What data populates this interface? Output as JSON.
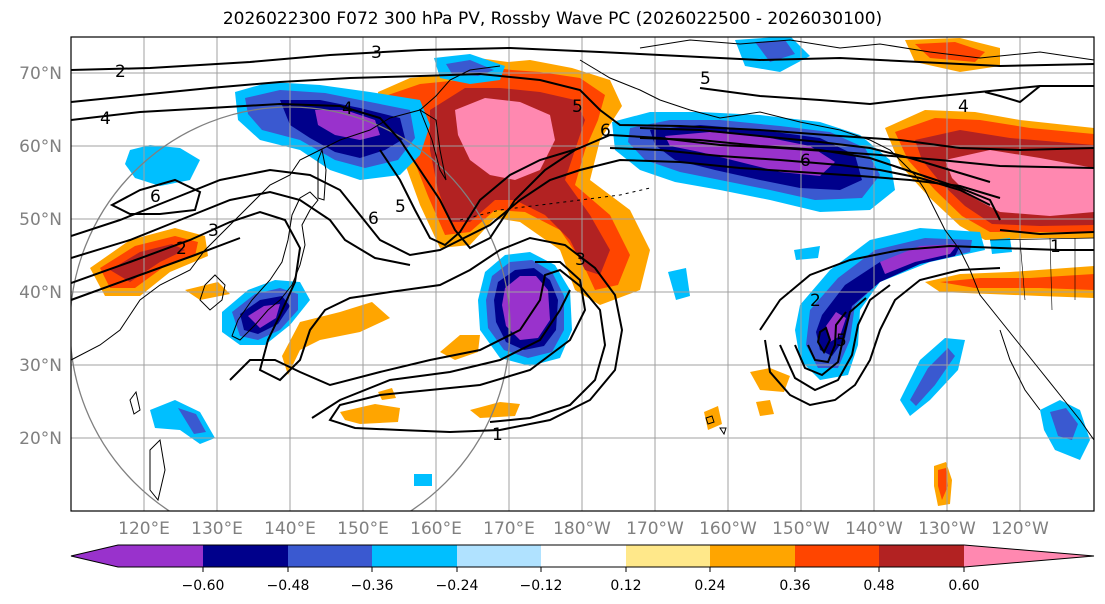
{
  "title": "2026022300 F072 300 hPa PV, Rossby Wave PC (2026022500 - 2026030100)",
  "lat_labels": [
    "70°N",
    "60°N",
    "50°N",
    "40°N",
    "30°N",
    "20°N"
  ],
  "lon_labels": [
    "120°E",
    "130°E",
    "140°E",
    "150°E",
    "160°E",
    "170°E",
    "180°W",
    "170°W",
    "160°W",
    "150°W",
    "140°W",
    "130°W",
    "120°W"
  ],
  "colorbar": {
    "colors": [
      "#9932cc",
      "#00008b",
      "#3a59d0",
      "#00bfff",
      "#b0e2ff",
      "#ffffff",
      "#ffe88a",
      "#ffa500",
      "#ff4500",
      "#b22222",
      "#ff88b0"
    ],
    "tick_labels": [
      "−0.60",
      "−0.48",
      "−0.36",
      "−0.24",
      "−0.12",
      "0.12",
      "0.24",
      "0.36",
      "0.48",
      "0.60"
    ]
  },
  "contour_labels": [
    "3",
    "2",
    "4",
    "5",
    "6",
    "6",
    "5",
    "4",
    "3",
    "1",
    "6",
    "5",
    "4",
    "2",
    "6",
    "3",
    "2",
    "5",
    "1"
  ]
}
